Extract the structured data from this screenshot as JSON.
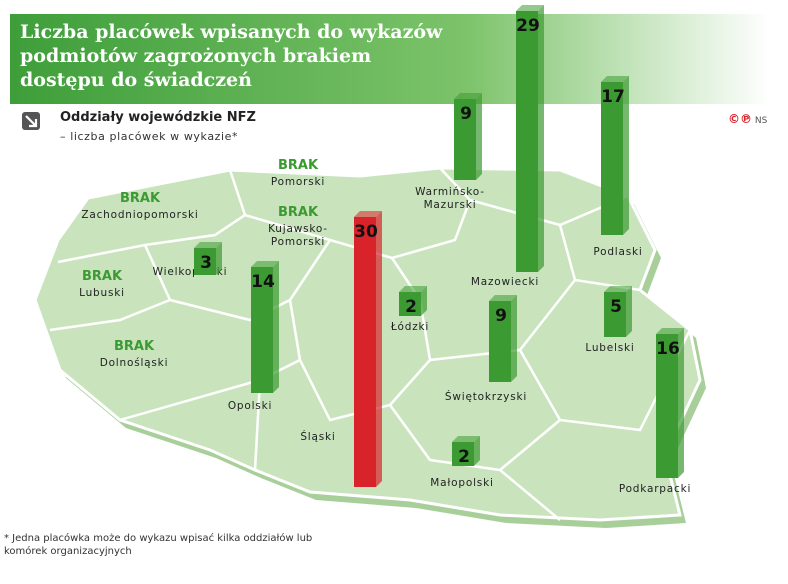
{
  "title": "Liczba placówek wpisanych do wykazów podmiotów zagrożonych brakiem dostępu do świadczeń",
  "legend": {
    "line1": "Oddziały wojewódzkie NFZ",
    "line2": "– liczba placówek w wykazie*"
  },
  "credit": "NS",
  "credit_mark": "©℗",
  "footnote": "* Jedna placówka może do wykazu wpisać kilka oddziałów lub komórek organizacyjnych",
  "colors": {
    "normal": "#3c9a32",
    "highlight": "#d8232a",
    "map": "#c9e4bd",
    "title_band": "#5cb85c"
  },
  "chart_data": {
    "type": "bar",
    "title": "Liczba placówek wpisanych do wykazów podmiotów zagrożonych brakiem dostępu do świadczeń",
    "xlabel": "Oddziały wojewódzkie NFZ",
    "ylabel": "liczba placówek w wykazie",
    "ylim": [
      0,
      30
    ],
    "no_data_label": "BRAK",
    "categories": [
      "Zachodniopomorski",
      "Pomorski",
      "Warmińsko-Mazurski",
      "Podlaski",
      "Lubuski",
      "Wielkopolski",
      "Kujawsko-Pomorski",
      "Mazowiecki",
      "Dolnośląski",
      "Opolski",
      "Śląski",
      "Łódzki",
      "Świętokrzyski",
      "Lubelski",
      "Małopolski",
      "Podkarpacki"
    ],
    "values": [
      null,
      null,
      9,
      17,
      null,
      3,
      null,
      29,
      null,
      14,
      30,
      2,
      9,
      5,
      2,
      16
    ],
    "highlight": "Śląski"
  }
}
